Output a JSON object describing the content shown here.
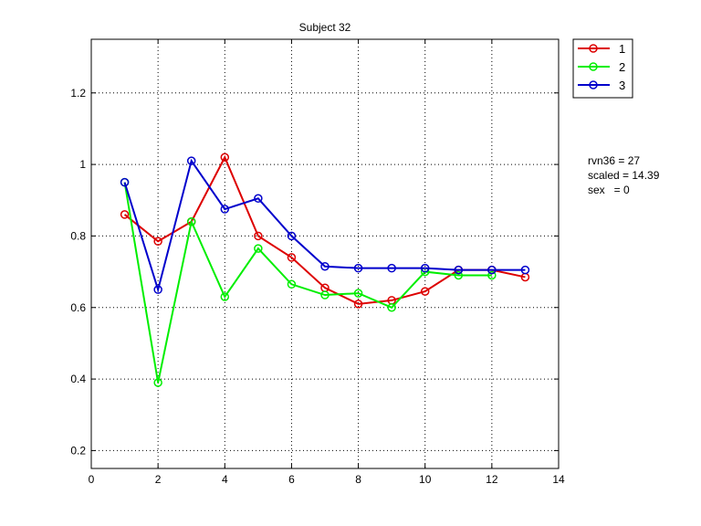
{
  "chart_data": {
    "type": "line",
    "title": "Subject 32",
    "xlabel": "",
    "ylabel": "",
    "xlim": [
      0,
      14
    ],
    "ylim": [
      0.15,
      1.35
    ],
    "xticks": [
      0,
      2,
      4,
      6,
      8,
      10,
      12,
      14
    ],
    "yticks": [
      0.2,
      0.4,
      0.6,
      0.8,
      1,
      1.2
    ],
    "grid": true,
    "legend_position": "outside-top-right",
    "x": [
      1,
      2,
      3,
      4,
      5,
      6,
      7,
      8,
      9,
      10,
      11,
      12,
      13
    ],
    "series": [
      {
        "name": "1",
        "color": "#dd0000",
        "marker": "circle",
        "values": [
          0.86,
          0.785,
          0.84,
          1.02,
          0.8,
          0.74,
          0.655,
          0.61,
          0.62,
          0.645,
          0.705,
          0.705,
          0.685
        ]
      },
      {
        "name": "2",
        "color": "#00ee00",
        "marker": "circle",
        "values": [
          0.95,
          0.39,
          0.84,
          0.63,
          0.765,
          0.665,
          0.635,
          0.64,
          0.6,
          0.7,
          0.69,
          0.69,
          null
        ]
      },
      {
        "name": "3",
        "color": "#0000cc",
        "marker": "circle",
        "values": [
          0.95,
          0.65,
          1.01,
          0.875,
          0.905,
          0.8,
          0.715,
          0.71,
          0.71,
          0.71,
          0.705,
          0.705,
          0.705
        ]
      }
    ],
    "annotations": [
      "rvn36 = 27",
      "scaled = 14.39",
      "sex   = 0"
    ]
  }
}
